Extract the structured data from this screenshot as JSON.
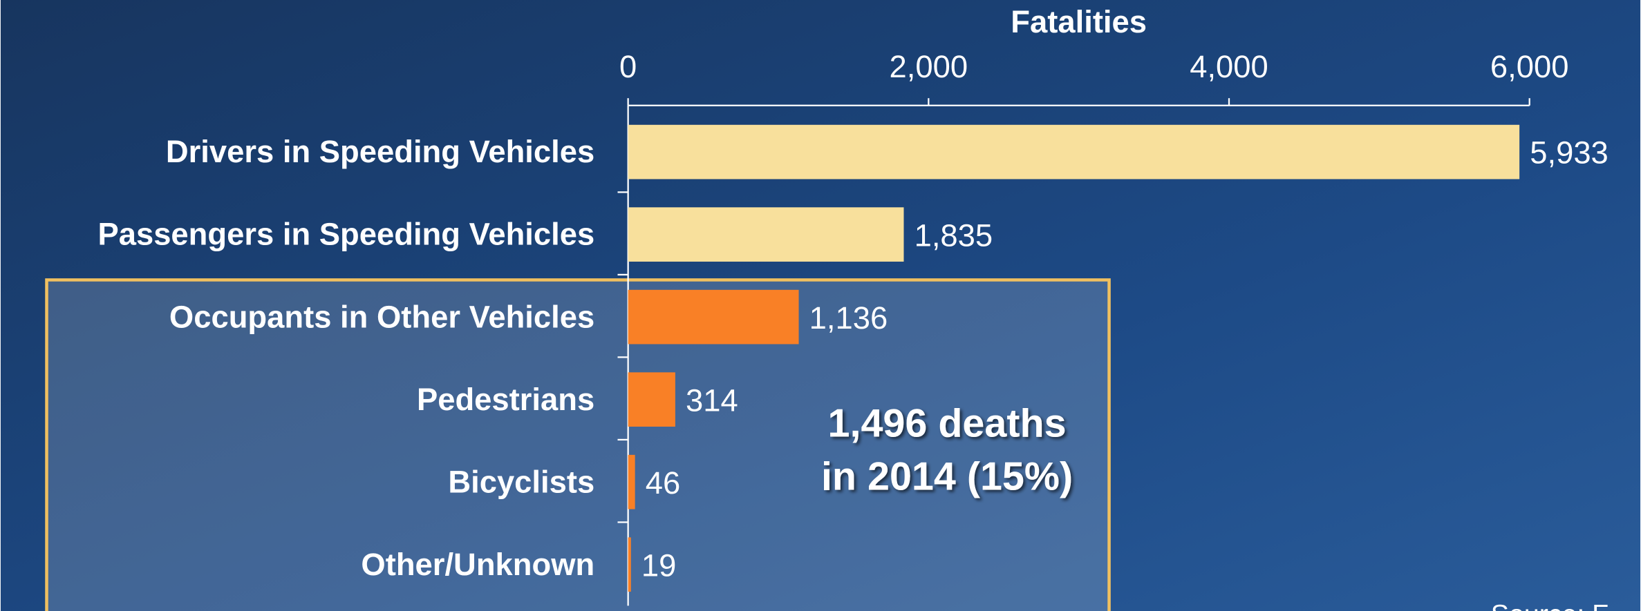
{
  "chart_data": {
    "type": "bar",
    "orientation": "horizontal",
    "title": "Fatalities",
    "categories": [
      "Drivers in Speeding Vehicles",
      "Passengers in Speeding Vehicles",
      "Occupants in Other Vehicles",
      "Pedestrians",
      "Bicyclists",
      "Other/Unknown"
    ],
    "values": [
      5933,
      1835,
      1136,
      314,
      46,
      19
    ],
    "value_labels": [
      "5,933",
      "1,835",
      "1,136",
      "314",
      "46",
      "19"
    ],
    "colors": [
      "#f8e09c",
      "#f8e09c",
      "#f98026",
      "#f98026",
      "#f98026",
      "#f98026"
    ],
    "xlim": [
      0,
      6000
    ],
    "xticks": [
      0,
      {
        "value": 2000,
        "label": "2,000"
      },
      {
        "value": 4000,
        "label": "4,000"
      },
      {
        "value": 6000,
        "label": "6,000"
      }
    ],
    "annotation": [
      "1,496 deaths",
      "in 2014 (15%)"
    ],
    "source": "Source: F"
  }
}
